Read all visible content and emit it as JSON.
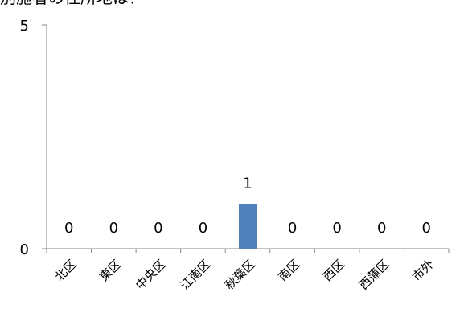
{
  "chart_data": {
    "type": "bar",
    "title": "別施者の住所地は？",
    "categories": [
      "北区",
      "東区",
      "中央区",
      "江南区",
      "秋葉区",
      "南区",
      "西区",
      "西蒲区",
      "市外"
    ],
    "values": [
      0,
      0,
      0,
      0,
      1,
      0,
      0,
      0,
      0
    ],
    "xlabel": "",
    "ylabel": "",
    "ylim": [
      0,
      5
    ],
    "yticks": [
      0,
      5
    ],
    "data_labels": true,
    "grid": false,
    "legend": "none",
    "bar_color": "#4f81bd"
  }
}
